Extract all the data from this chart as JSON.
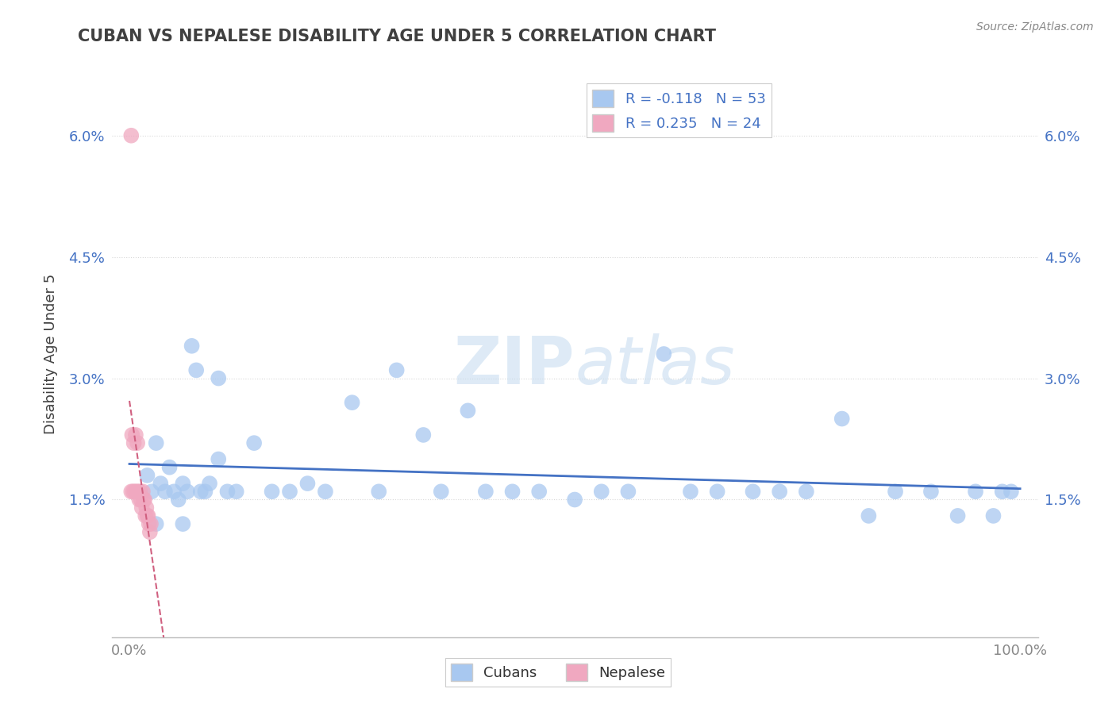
{
  "title": "CUBAN VS NEPALESE DISABILITY AGE UNDER 5 CORRELATION CHART",
  "source_text": "Source: ZipAtlas.com",
  "ylabel": "Disability Age Under 5",
  "xlabel": "",
  "xlim": [
    -0.02,
    1.02
  ],
  "ylim": [
    -0.002,
    0.068
  ],
  "xticks": [
    0.0,
    1.0
  ],
  "xtick_labels": [
    "0.0%",
    "100.0%"
  ],
  "ytick_vals": [
    0.015,
    0.03,
    0.045,
    0.06
  ],
  "ytick_labels": [
    "1.5%",
    "3.0%",
    "4.5%",
    "6.0%"
  ],
  "cubans_x": [
    0.02,
    0.025,
    0.03,
    0.035,
    0.04,
    0.045,
    0.05,
    0.055,
    0.06,
    0.065,
    0.07,
    0.075,
    0.08,
    0.085,
    0.09,
    0.1,
    0.11,
    0.12,
    0.14,
    0.16,
    0.18,
    0.2,
    0.22,
    0.25,
    0.28,
    0.3,
    0.33,
    0.35,
    0.38,
    0.4,
    0.43,
    0.46,
    0.5,
    0.53,
    0.56,
    0.6,
    0.63,
    0.66,
    0.7,
    0.73,
    0.76,
    0.8,
    0.83,
    0.86,
    0.9,
    0.93,
    0.95,
    0.97,
    0.98,
    0.99,
    0.03,
    0.06,
    0.1
  ],
  "cubans_y": [
    0.018,
    0.016,
    0.022,
    0.017,
    0.016,
    0.019,
    0.016,
    0.015,
    0.017,
    0.016,
    0.034,
    0.031,
    0.016,
    0.016,
    0.017,
    0.03,
    0.016,
    0.016,
    0.022,
    0.016,
    0.016,
    0.017,
    0.016,
    0.027,
    0.016,
    0.031,
    0.023,
    0.016,
    0.026,
    0.016,
    0.016,
    0.016,
    0.015,
    0.016,
    0.016,
    0.033,
    0.016,
    0.016,
    0.016,
    0.016,
    0.016,
    0.025,
    0.013,
    0.016,
    0.016,
    0.013,
    0.016,
    0.013,
    0.016,
    0.016,
    0.012,
    0.012,
    0.02
  ],
  "nepalese_x": [
    0.002,
    0.003,
    0.004,
    0.005,
    0.006,
    0.007,
    0.008,
    0.009,
    0.01,
    0.011,
    0.012,
    0.013,
    0.014,
    0.015,
    0.016,
    0.017,
    0.018,
    0.019,
    0.02,
    0.021,
    0.022,
    0.023,
    0.024,
    0.002
  ],
  "nepalese_y": [
    0.06,
    0.023,
    0.016,
    0.022,
    0.016,
    0.023,
    0.016,
    0.022,
    0.016,
    0.015,
    0.016,
    0.015,
    0.014,
    0.016,
    0.015,
    0.015,
    0.013,
    0.014,
    0.013,
    0.013,
    0.012,
    0.011,
    0.012,
    0.016
  ],
  "cubans_R": -0.118,
  "cubans_N": 53,
  "nepalese_R": 0.235,
  "nepalese_N": 24,
  "cubans_color": "#a8c8f0",
  "nepalese_color": "#f0a8c0",
  "cubans_line_color": "#4472c4",
  "nepalese_line_color": "#d06080",
  "watermark_color": "#c8ddf0",
  "background_color": "#ffffff",
  "grid_color": "#d8d8d8",
  "title_color": "#404040",
  "axis_label_color": "#404040",
  "tick_color_y": "#4472c4",
  "tick_color_x": "#888888",
  "source_color": "#888888"
}
